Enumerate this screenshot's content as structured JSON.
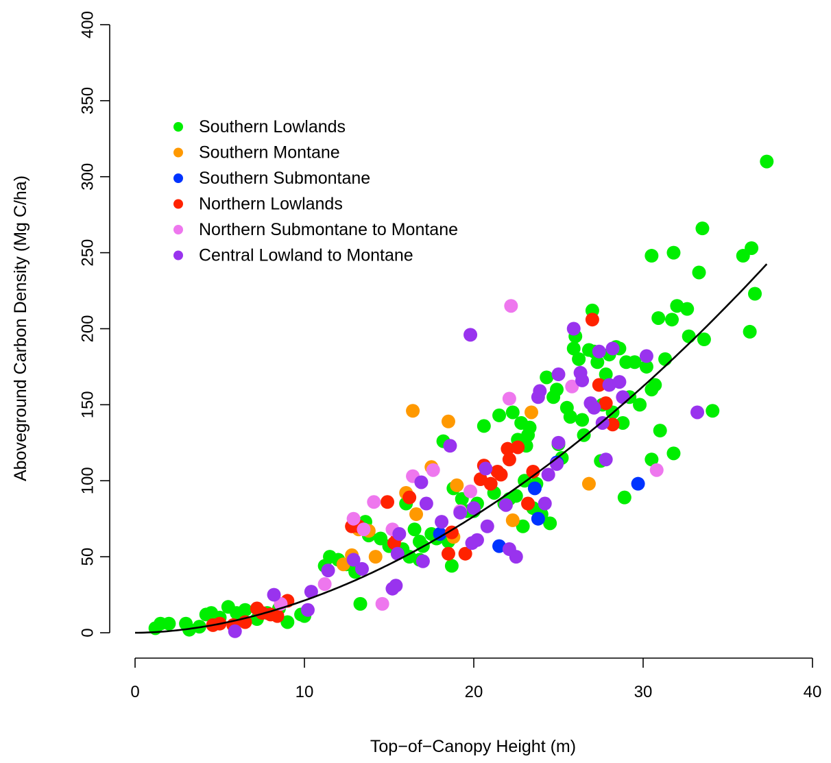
{
  "chart_data": {
    "type": "scatter",
    "xlabel": "Top−of−Canopy Height (m)",
    "ylabel": "Aboveground Carbon Density (Mg C/ha)",
    "xlim": [
      0,
      40
    ],
    "ylim": [
      0,
      400
    ],
    "xticks": [
      "0",
      "10",
      "20",
      "30",
      "40"
    ],
    "yticks": [
      "0",
      "50",
      "100",
      "150",
      "200",
      "250",
      "300",
      "350",
      "400"
    ],
    "grid": false,
    "legend_position": "top-left",
    "series": [
      {
        "name": "Southern Lowlands",
        "color": "#00ee00",
        "points": [
          [
            1.2,
            3
          ],
          [
            1.5,
            6
          ],
          [
            2.0,
            6
          ],
          [
            3.0,
            6
          ],
          [
            3.2,
            2
          ],
          [
            3.8,
            4
          ],
          [
            4.2,
            12
          ],
          [
            4.5,
            13
          ],
          [
            5.0,
            10
          ],
          [
            5.5,
            17
          ],
          [
            6.0,
            13
          ],
          [
            6.5,
            15
          ],
          [
            7.2,
            9
          ],
          [
            7.8,
            13
          ],
          [
            8.5,
            16
          ],
          [
            9.0,
            7
          ],
          [
            9.8,
            12
          ],
          [
            10.0,
            11
          ],
          [
            11.2,
            44
          ],
          [
            11.5,
            50
          ],
          [
            12.0,
            48
          ],
          [
            12.5,
            45
          ],
          [
            13.0,
            40
          ],
          [
            13.3,
            19
          ],
          [
            13.6,
            73
          ],
          [
            13.8,
            64
          ],
          [
            14.5,
            62
          ],
          [
            15.0,
            57
          ],
          [
            15.8,
            55
          ],
          [
            16.0,
            85
          ],
          [
            16.2,
            50
          ],
          [
            16.5,
            68
          ],
          [
            16.8,
            60
          ],
          [
            16.8,
            48
          ],
          [
            17.0,
            57
          ],
          [
            17.5,
            65
          ],
          [
            17.8,
            62
          ],
          [
            18.2,
            126
          ],
          [
            18.5,
            60
          ],
          [
            18.7,
            44
          ],
          [
            18.8,
            95
          ],
          [
            19.3,
            88
          ],
          [
            19.6,
            80
          ],
          [
            20.0,
            80
          ],
          [
            20.2,
            85
          ],
          [
            20.6,
            136
          ],
          [
            21.2,
            92
          ],
          [
            21.5,
            143
          ],
          [
            21.8,
            85
          ],
          [
            22.1,
            88
          ],
          [
            22.3,
            145
          ],
          [
            22.5,
            90
          ],
          [
            22.6,
            127
          ],
          [
            22.8,
            138
          ],
          [
            22.9,
            70
          ],
          [
            23.0,
            100
          ],
          [
            23.1,
            123
          ],
          [
            23.2,
            130
          ],
          [
            23.3,
            135
          ],
          [
            23.5,
            82
          ],
          [
            23.7,
            98
          ],
          [
            24.0,
            78
          ],
          [
            24.3,
            168
          ],
          [
            24.5,
            72
          ],
          [
            24.7,
            155
          ],
          [
            24.9,
            160
          ],
          [
            25.0,
            124
          ],
          [
            25.2,
            115
          ],
          [
            25.5,
            148
          ],
          [
            25.7,
            142
          ],
          [
            25.9,
            187
          ],
          [
            26.0,
            195
          ],
          [
            26.2,
            180
          ],
          [
            26.4,
            140
          ],
          [
            26.5,
            130
          ],
          [
            26.8,
            186
          ],
          [
            27.0,
            212
          ],
          [
            27.1,
            185
          ],
          [
            27.3,
            178
          ],
          [
            27.5,
            113
          ],
          [
            27.6,
            150
          ],
          [
            27.8,
            170
          ],
          [
            28.0,
            183
          ],
          [
            28.2,
            145
          ],
          [
            28.4,
            188
          ],
          [
            28.6,
            187
          ],
          [
            28.8,
            138
          ],
          [
            28.9,
            89
          ],
          [
            29.0,
            178
          ],
          [
            29.2,
            155
          ],
          [
            29.5,
            178
          ],
          [
            29.8,
            150
          ],
          [
            30.2,
            175
          ],
          [
            30.5,
            114
          ],
          [
            30.5,
            248
          ],
          [
            30.5,
            160
          ],
          [
            30.7,
            163
          ],
          [
            30.9,
            207
          ],
          [
            31.0,
            133
          ],
          [
            31.3,
            180
          ],
          [
            31.7,
            206
          ],
          [
            31.8,
            118
          ],
          [
            31.8,
            250
          ],
          [
            32.0,
            215
          ],
          [
            32.6,
            213
          ],
          [
            32.7,
            195
          ],
          [
            33.3,
            237
          ],
          [
            33.5,
            266
          ],
          [
            33.6,
            193
          ],
          [
            34.1,
            146
          ],
          [
            35.9,
            248
          ],
          [
            36.4,
            253
          ],
          [
            36.6,
            223
          ],
          [
            36.3,
            198
          ],
          [
            37.3,
            310
          ]
        ]
      },
      {
        "name": "Southern Montane",
        "color": "#ff9900",
        "points": [
          [
            12.3,
            45
          ],
          [
            12.8,
            51
          ],
          [
            13.2,
            68
          ],
          [
            13.8,
            67
          ],
          [
            14.2,
            50
          ],
          [
            16.0,
            92
          ],
          [
            16.4,
            146
          ],
          [
            16.6,
            78
          ],
          [
            17.5,
            109
          ],
          [
            18.5,
            139
          ],
          [
            18.8,
            63
          ],
          [
            19.0,
            97
          ],
          [
            22.3,
            74
          ],
          [
            23.4,
            145
          ],
          [
            26.8,
            98
          ]
        ]
      },
      {
        "name": "Southern Submontane",
        "color": "#0033ff",
        "points": [
          [
            18.0,
            65
          ],
          [
            21.5,
            57
          ],
          [
            23.6,
            95
          ],
          [
            23.8,
            75
          ],
          [
            24.9,
            112
          ],
          [
            29.7,
            98
          ]
        ]
      },
      {
        "name": "Northern Lowlands",
        "color": "#ff2200",
        "points": [
          [
            4.6,
            5
          ],
          [
            5.0,
            6
          ],
          [
            5.8,
            5
          ],
          [
            6.5,
            7
          ],
          [
            7.2,
            16
          ],
          [
            7.5,
            13
          ],
          [
            8.0,
            12
          ],
          [
            8.4,
            11
          ],
          [
            9.0,
            21
          ],
          [
            12.8,
            70
          ],
          [
            13.2,
            70
          ],
          [
            14.9,
            86
          ],
          [
            15.3,
            59
          ],
          [
            15.5,
            64
          ],
          [
            16.2,
            89
          ],
          [
            18.5,
            52
          ],
          [
            18.7,
            66
          ],
          [
            19.5,
            52
          ],
          [
            20.4,
            101
          ],
          [
            20.6,
            110
          ],
          [
            21.0,
            98
          ],
          [
            21.4,
            106
          ],
          [
            21.6,
            104
          ],
          [
            22.0,
            121
          ],
          [
            22.1,
            114
          ],
          [
            22.6,
            122
          ],
          [
            23.2,
            85
          ],
          [
            23.5,
            106
          ],
          [
            27.0,
            206
          ],
          [
            27.4,
            163
          ],
          [
            27.8,
            151
          ],
          [
            28.2,
            137
          ]
        ]
      },
      {
        "name": "Northern Submontane to Montane",
        "color": "#ee77ee",
        "points": [
          [
            8.6,
            19
          ],
          [
            11.2,
            32
          ],
          [
            12.9,
            75
          ],
          [
            13.5,
            68
          ],
          [
            14.1,
            86
          ],
          [
            14.6,
            19
          ],
          [
            15.2,
            68
          ],
          [
            16.4,
            103
          ],
          [
            17.6,
            107
          ],
          [
            19.2,
            80
          ],
          [
            19.8,
            93
          ],
          [
            22.2,
            215
          ],
          [
            22.1,
            154
          ],
          [
            25.8,
            162
          ],
          [
            30.8,
            107
          ]
        ]
      },
      {
        "name": "Central Lowland to Montane",
        "color": "#9933ee",
        "points": [
          [
            5.9,
            1
          ],
          [
            8.2,
            25
          ],
          [
            10.2,
            15
          ],
          [
            10.4,
            27
          ],
          [
            11.4,
            41
          ],
          [
            12.9,
            48
          ],
          [
            13.4,
            42
          ],
          [
            15.2,
            29
          ],
          [
            15.4,
            31
          ],
          [
            15.5,
            52
          ],
          [
            15.6,
            65
          ],
          [
            16.9,
            99
          ],
          [
            17.0,
            47
          ],
          [
            17.2,
            85
          ],
          [
            18.1,
            73
          ],
          [
            18.6,
            123
          ],
          [
            19.2,
            79
          ],
          [
            19.8,
            196
          ],
          [
            19.9,
            59
          ],
          [
            20.0,
            82
          ],
          [
            20.2,
            61
          ],
          [
            20.7,
            108
          ],
          [
            20.8,
            70
          ],
          [
            21.9,
            84
          ],
          [
            22.1,
            55
          ],
          [
            22.5,
            50
          ],
          [
            23.8,
            155
          ],
          [
            23.9,
            159
          ],
          [
            24.2,
            85
          ],
          [
            24.4,
            104
          ],
          [
            24.9,
            111
          ],
          [
            25.0,
            125
          ],
          [
            25.0,
            170
          ],
          [
            25.9,
            200
          ],
          [
            26.3,
            171
          ],
          [
            26.4,
            166
          ],
          [
            26.9,
            151
          ],
          [
            27.1,
            148
          ],
          [
            27.4,
            185
          ],
          [
            27.6,
            138
          ],
          [
            27.8,
            114
          ],
          [
            28.0,
            163
          ],
          [
            28.2,
            187
          ],
          [
            28.6,
            165
          ],
          [
            28.8,
            155
          ],
          [
            30.2,
            182
          ],
          [
            33.2,
            145
          ]
        ]
      }
    ],
    "fit_curve": {
      "type": "power",
      "a": 0.3,
      "b": 1.85,
      "x_range": [
        0,
        37.3
      ]
    }
  }
}
